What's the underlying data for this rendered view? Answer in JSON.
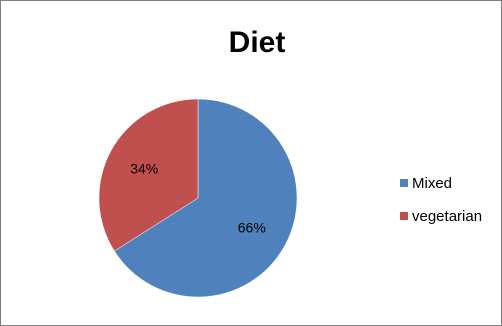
{
  "chart_data": {
    "type": "pie",
    "title": "Diet",
    "legend_position": "right",
    "slices": [
      {
        "name": "Mixed",
        "value": 66,
        "label": "66%",
        "color": "#4f81bd"
      },
      {
        "name": "vegetarian",
        "value": 34,
        "label": "34%",
        "color": "#c0504d"
      }
    ]
  }
}
